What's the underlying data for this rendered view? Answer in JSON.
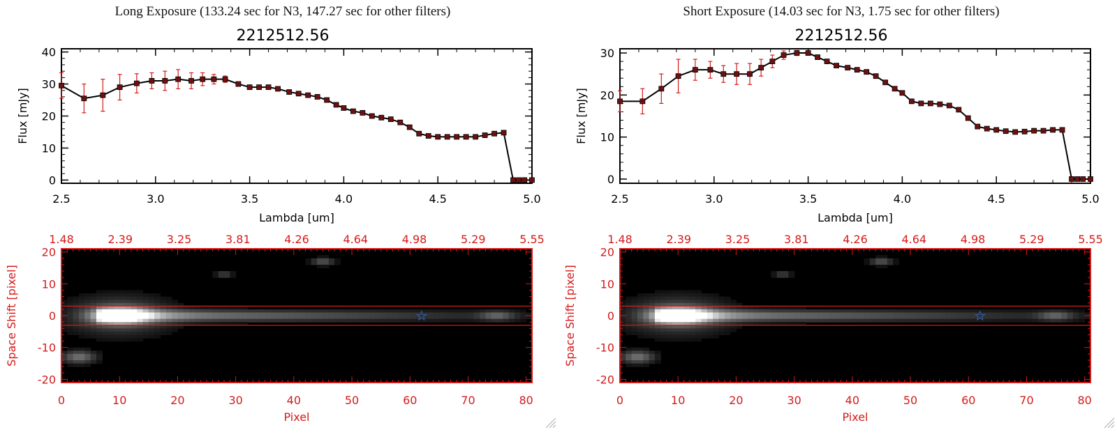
{
  "colors": {
    "red": "#d51a1a",
    "marker": "#6e1010",
    "line": "#000000",
    "star": "#2a7fff"
  },
  "panels": [
    {
      "id": "long",
      "panel_title": "Long Exposure (133.24 sec for N3, 147.27 sec for other filters)",
      "spectrum_title": "2212512.56",
      "image_y_label": "Space Shift [pixel]",
      "image_x_label": "Pixel"
    },
    {
      "id": "short",
      "panel_title": "Short Exposure (14.03 sec for N3, 1.75 sec for other filters)",
      "spectrum_title": "2212512.56",
      "image_y_label": "Space Shift [pixel]",
      "image_x_label": "Pixel"
    }
  ],
  "chart_data": [
    {
      "type": "line",
      "panel": "long",
      "title": "2212512.56",
      "xlabel": "Lambda [um]",
      "ylabel": "Flux [mJy]",
      "xlim": [
        2.5,
        5.0
      ],
      "ylim": [
        -1,
        41
      ],
      "xticks": [
        "2.5",
        "3.0",
        "3.5",
        "4.0",
        "4.5",
        "5.0"
      ],
      "yticks": [
        "0",
        "10",
        "20",
        "30",
        "40"
      ],
      "series": [
        {
          "x": [
            2.5,
            2.62,
            2.72,
            2.81,
            2.9,
            2.98,
            3.05,
            3.12,
            3.19,
            3.25,
            3.31,
            3.37,
            3.44,
            3.5,
            3.55,
            3.6,
            3.65,
            3.71,
            3.76,
            3.81,
            3.86,
            3.91,
            3.96,
            4.0,
            4.05,
            4.1,
            4.15,
            4.2,
            4.25,
            4.3,
            4.35,
            4.4,
            4.45,
            4.5,
            4.55,
            4.6,
            4.65,
            4.7,
            4.75,
            4.8,
            4.85,
            4.9,
            4.93,
            4.96,
            5.0
          ],
          "y": [
            29.5,
            25.5,
            26.5,
            29,
            30.2,
            31,
            31,
            31.5,
            31,
            31.5,
            31.5,
            31.5,
            30,
            29,
            29,
            29,
            28.5,
            27.5,
            27,
            26.5,
            26,
            25,
            23.5,
            22.5,
            21.5,
            21,
            20,
            19.5,
            19,
            18,
            16.5,
            14.5,
            13.8,
            13.5,
            13.5,
            13.5,
            13.5,
            13.5,
            14,
            14.5,
            14.8,
            0,
            0,
            0,
            0
          ],
          "yerr": [
            4,
            4.5,
            5,
            4,
            3,
            2.5,
            3,
            3,
            2.5,
            2,
            1.5,
            1,
            0.5,
            0.5,
            0.5,
            0.4,
            0.4,
            0.4,
            0.4,
            0.4,
            0.4,
            0.4,
            0.4,
            0.4,
            0.4,
            0.4,
            0.4,
            0.4,
            0.4,
            0.4,
            0.4,
            0.4,
            0.4,
            0.4,
            0.4,
            0.4,
            0.4,
            0.4,
            0.4,
            0.4,
            0.4,
            0.4,
            0.4,
            0.4,
            0.4
          ]
        }
      ]
    },
    {
      "type": "line",
      "panel": "short",
      "title": "2212512.56",
      "xlabel": "Lambda [um]",
      "ylabel": "Flux [mJy]",
      "xlim": [
        2.5,
        5.0
      ],
      "ylim": [
        -1,
        31
      ],
      "xticks": [
        "2.5",
        "3.0",
        "3.5",
        "4.0",
        "4.5",
        "5.0"
      ],
      "yticks": [
        "0",
        "10",
        "20",
        "30"
      ],
      "series": [
        {
          "x": [
            2.5,
            2.62,
            2.72,
            2.81,
            2.9,
            2.98,
            3.05,
            3.12,
            3.19,
            3.25,
            3.31,
            3.37,
            3.44,
            3.5,
            3.55,
            3.6,
            3.65,
            3.71,
            3.76,
            3.81,
            3.86,
            3.91,
            3.96,
            4.0,
            4.05,
            4.1,
            4.15,
            4.2,
            4.25,
            4.3,
            4.35,
            4.4,
            4.45,
            4.5,
            4.55,
            4.6,
            4.65,
            4.7,
            4.75,
            4.8,
            4.85,
            4.9,
            4.93,
            4.96,
            5.0
          ],
          "y": [
            18.5,
            18.5,
            21.5,
            24.5,
            26,
            26,
            25,
            25,
            25,
            26.5,
            28,
            29.5,
            30,
            30,
            29,
            28,
            27,
            26.5,
            26,
            25.5,
            24.5,
            23,
            21.5,
            20.5,
            18.5,
            18,
            18,
            17.8,
            17.5,
            16.5,
            14.5,
            12.5,
            12,
            11.7,
            11.4,
            11.2,
            11.3,
            11.5,
            11.5,
            11.7,
            11.7,
            0,
            0,
            0,
            0
          ],
          "yerr": [
            2.5,
            3,
            3.5,
            4,
            2.5,
            2,
            2,
            2.5,
            2.5,
            2,
            1.5,
            1,
            0.6,
            0.5,
            0.5,
            0.4,
            0.4,
            0.4,
            0.4,
            0.4,
            0.4,
            0.4,
            0.4,
            0.4,
            0.4,
            0.4,
            0.4,
            0.4,
            0.4,
            0.4,
            0.4,
            0.4,
            0.4,
            0.4,
            0.4,
            0.4,
            0.4,
            0.4,
            0.4,
            0.4,
            0.4,
            0.4,
            0.4,
            0.4,
            0.4
          ]
        }
      ]
    },
    {
      "type": "heatmap",
      "panel": "long",
      "xlabel": "Pixel",
      "ylabel": "Space Shift [pixel]",
      "xlim": [
        0,
        81
      ],
      "ylim": [
        -21,
        21
      ],
      "xticks": [
        "0",
        "10",
        "20",
        "30",
        "40",
        "50",
        "60",
        "70",
        "80"
      ],
      "yticks": [
        "-20",
        "-10",
        "0",
        "10",
        "20"
      ],
      "top_ticks": [
        "1.48",
        "2.39",
        "3.25",
        "3.81",
        "4.26",
        "4.64",
        "4.98",
        "5.29",
        "5.55"
      ],
      "aperture_lines": [
        3,
        -3
      ],
      "marker": {
        "x": 62,
        "y": 0,
        "symbol": "☆"
      }
    },
    {
      "type": "heatmap",
      "panel": "short",
      "xlabel": "Pixel",
      "ylabel": "Space Shift [pixel]",
      "xlim": [
        0,
        81
      ],
      "ylim": [
        -21,
        21
      ],
      "xticks": [
        "0",
        "10",
        "20",
        "30",
        "40",
        "50",
        "60",
        "70",
        "80"
      ],
      "yticks": [
        "-20",
        "-10",
        "0",
        "10",
        "20"
      ],
      "top_ticks": [
        "1.48",
        "2.39",
        "3.25",
        "3.81",
        "4.26",
        "4.64",
        "4.98",
        "5.29",
        "5.55"
      ],
      "aperture_lines": [
        3,
        -3
      ],
      "marker": {
        "x": 62,
        "y": 0,
        "symbol": "☆"
      }
    }
  ],
  "resize_grip_icon": "resize-grip-icon"
}
